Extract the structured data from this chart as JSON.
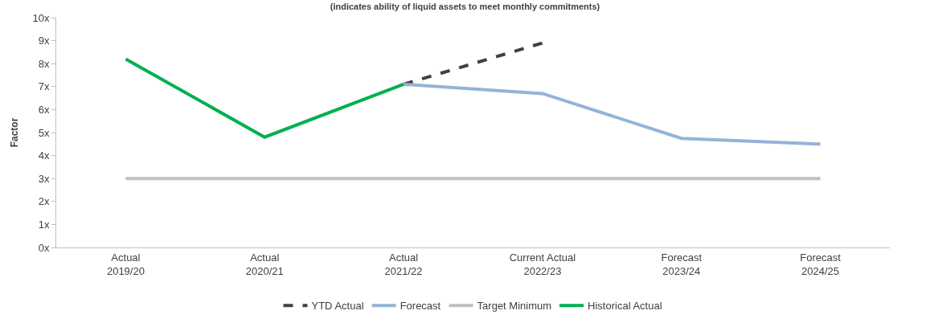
{
  "chart_data": {
    "type": "line",
    "subtitle": "(indicates ability of liquid assets to meet monthly commitments)",
    "ylabel": "Factor",
    "categories": [
      "Actual\n2019/20",
      "Actual\n2020/21",
      "Actual\n2021/22",
      "Current Actual\n2022/23",
      "Forecast\n2023/24",
      "Forecast\n2024/25"
    ],
    "series": [
      {
        "name": "YTD Actual",
        "color": "#404040",
        "line_style": "dashed",
        "values": [
          null,
          null,
          7.1,
          8.9,
          null,
          null
        ]
      },
      {
        "name": "Forecast",
        "color": "#95b3d7",
        "line_style": "solid",
        "values": [
          null,
          null,
          7.1,
          6.7,
          4.75,
          4.5
        ]
      },
      {
        "name": "Target Minimum",
        "color": "#bfbfbf",
        "line_style": "solid",
        "values": [
          3,
          3,
          3,
          3,
          3,
          3
        ]
      },
      {
        "name": "Historical Actual",
        "color": "#00b050",
        "line_style": "solid",
        "values": [
          8.2,
          4.8,
          7.1,
          null,
          null,
          null
        ]
      }
    ],
    "ylim": [
      0,
      10
    ],
    "yticks": [
      {
        "value": 0,
        "label": "0x"
      },
      {
        "value": 1,
        "label": "1x"
      },
      {
        "value": 2,
        "label": "2x"
      },
      {
        "value": 3,
        "label": "3x"
      },
      {
        "value": 4,
        "label": "4x"
      },
      {
        "value": 5,
        "label": "5x"
      },
      {
        "value": 6,
        "label": "6x"
      },
      {
        "value": 7,
        "label": "7x"
      },
      {
        "value": 8,
        "label": "8x"
      },
      {
        "value": 9,
        "label": "9x"
      },
      {
        "value": 10,
        "label": "10x"
      }
    ],
    "grid": false,
    "legend": "bottom",
    "marker": "none"
  }
}
